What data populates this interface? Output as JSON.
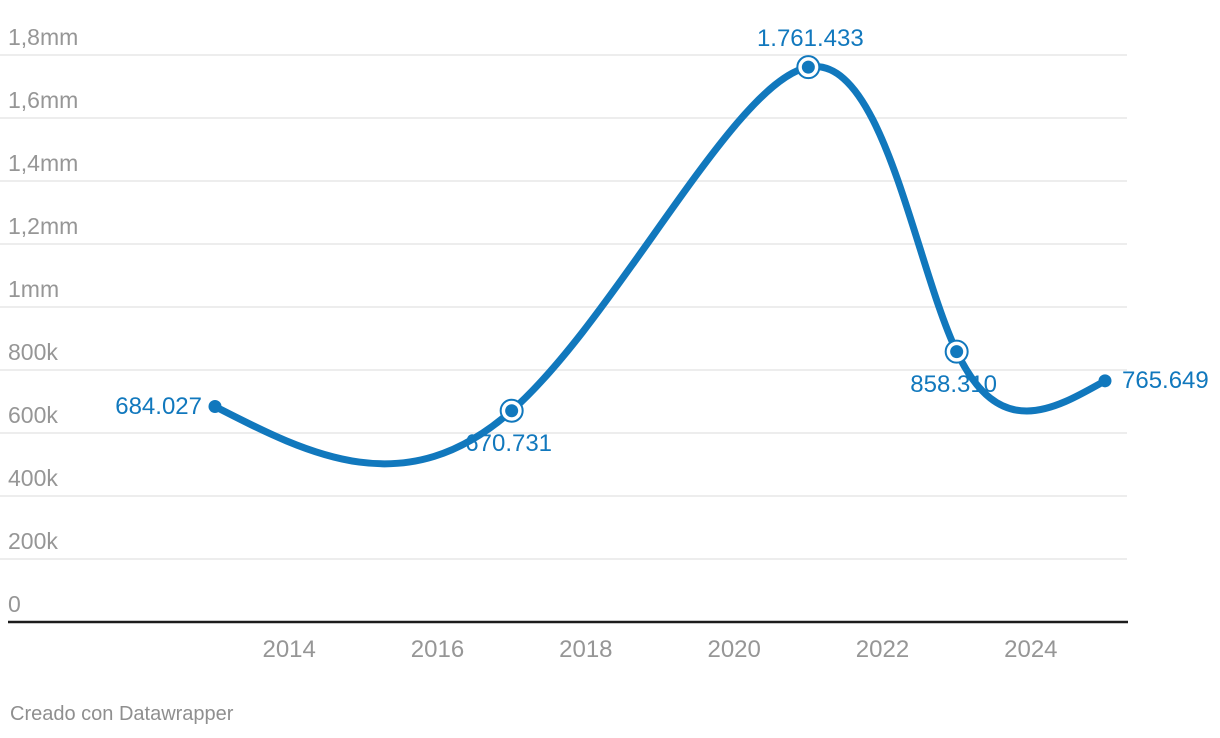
{
  "chart_data": {
    "type": "line",
    "curve": "natural",
    "title": "",
    "xlabel": "",
    "ylabel": "",
    "x": [
      2013,
      2017,
      2021,
      2023,
      2025
    ],
    "values": [
      684027,
      670731,
      1761433,
      858310,
      765649
    ],
    "point_labels": [
      "684.027",
      "670.731",
      "1.761.433",
      "858.310",
      "765.649"
    ],
    "label_positions": [
      "left",
      "below",
      "above",
      "below",
      "right"
    ],
    "markers": [
      "dot",
      "ring",
      "ring",
      "ring",
      "dot"
    ],
    "x_ticks": [
      2014,
      2016,
      2018,
      2020,
      2022,
      2024
    ],
    "x_tick_labels": [
      "2014",
      "2016",
      "2018",
      "2020",
      "2022",
      "2024"
    ],
    "y_ticks": [
      0,
      200000,
      400000,
      600000,
      800000,
      1000000,
      1200000,
      1400000,
      1600000,
      1800000
    ],
    "y_tick_labels": [
      "0",
      "200k",
      "400k",
      "600k",
      "800k",
      "1mm",
      "1,2mm",
      "1,4mm",
      "1,6mm",
      "1,8mm"
    ],
    "xlim": [
      2013,
      2025
    ],
    "ylim": [
      0,
      1800000
    ],
    "grid": true,
    "legend": "none"
  },
  "colors": {
    "line": "#1178bd",
    "data_label": "#1178bd",
    "grid": "#e7e7e7",
    "axis": "#1c1c1c",
    "tick_label": "#969696",
    "footer_text": "#8f8f8f",
    "background": "#ffffff"
  },
  "footer": {
    "credit": "Creado con Datawrapper"
  }
}
